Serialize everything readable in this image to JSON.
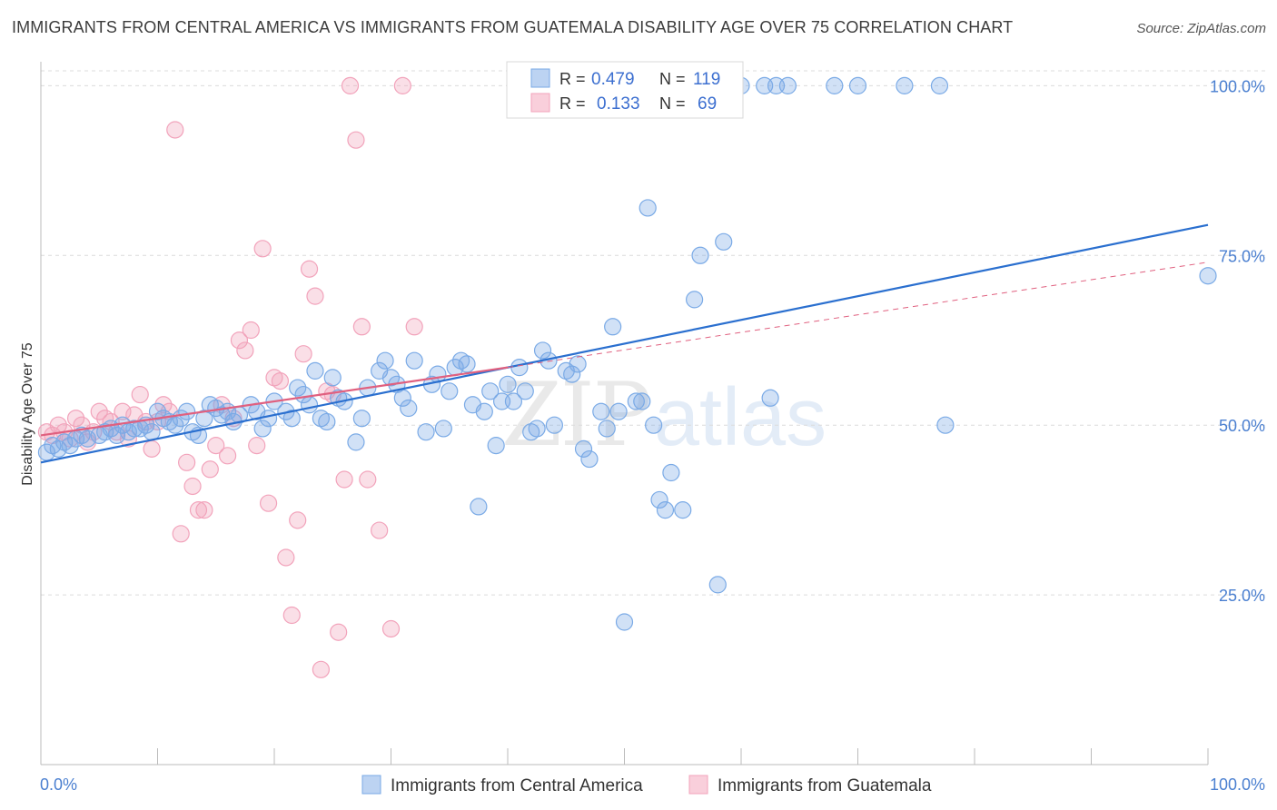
{
  "title": "IMMIGRANTS FROM CENTRAL AMERICA VS IMMIGRANTS FROM GUATEMALA DISABILITY AGE OVER 75 CORRELATION CHART",
  "source": "Source: ZipAtlas.com",
  "watermark": "ZIPatlas",
  "colors": {
    "blue": "#7aaae6",
    "blue_line": "#2a6fcf",
    "pink": "#f2a3bb",
    "pink_line": "#e0607f",
    "axis_text": "#4a7fd0"
  },
  "legend_top": [
    {
      "r_label": "R =",
      "r_value": "0.479",
      "n_label": "N =",
      "n_value": "119"
    },
    {
      "r_label": "R =",
      "r_value": "0.133",
      "n_label": "N =",
      "n_value": "69"
    }
  ],
  "chart_data": {
    "type": "scatter",
    "title": "IMMIGRANTS FROM CENTRAL AMERICA VS IMMIGRANTS FROM GUATEMALA DISABILITY AGE OVER 75 CORRELATION CHART",
    "xlabel": "",
    "ylabel": "Disability Age Over 75",
    "xlim": [
      0,
      100
    ],
    "ylim": [
      0,
      105
    ],
    "x_tick_labels": [
      "0.0%",
      "100.0%"
    ],
    "y_tick_labels": [
      "25.0%",
      "50.0%",
      "75.0%",
      "100.0%"
    ],
    "y_ticks": [
      25,
      50,
      75,
      100
    ],
    "grid": true,
    "legend_position": "top-center",
    "series": [
      {
        "name": "Immigrants from Central America",
        "color": "#7aaae6",
        "trend": {
          "x": [
            0,
            100
          ],
          "y": [
            44.5,
            79.5
          ]
        },
        "points": [
          [
            0.5,
            46
          ],
          [
            1,
            47
          ],
          [
            1.5,
            46.5
          ],
          [
            2,
            47.5
          ],
          [
            2.5,
            47
          ],
          [
            3,
            48
          ],
          [
            3.5,
            48.5
          ],
          [
            4,
            48
          ],
          [
            5,
            48.5
          ],
          [
            5.5,
            49
          ],
          [
            6,
            49.5
          ],
          [
            6.5,
            48.5
          ],
          [
            7,
            50
          ],
          [
            7.5,
            49
          ],
          [
            8,
            49.5
          ],
          [
            8.5,
            49.5
          ],
          [
            9,
            50
          ],
          [
            9.5,
            49
          ],
          [
            10,
            52
          ],
          [
            10.5,
            51
          ],
          [
            11,
            50.5
          ],
          [
            11.5,
            50
          ],
          [
            12,
            51
          ],
          [
            12.5,
            52
          ],
          [
            13,
            49
          ],
          [
            13.5,
            48.5
          ],
          [
            14,
            51
          ],
          [
            14.5,
            53
          ],
          [
            15,
            52.5
          ],
          [
            15.5,
            51.5
          ],
          [
            16,
            52
          ],
          [
            16.5,
            50.5
          ],
          [
            17,
            51.5
          ],
          [
            18,
            53
          ],
          [
            18.5,
            52
          ],
          [
            19,
            49.5
          ],
          [
            19.5,
            51
          ],
          [
            20,
            53.5
          ],
          [
            21,
            52
          ],
          [
            21.5,
            51
          ],
          [
            22,
            55.5
          ],
          [
            22.5,
            54.5
          ],
          [
            23,
            53
          ],
          [
            23.5,
            58
          ],
          [
            24,
            51
          ],
          [
            24.5,
            50.5
          ],
          [
            25,
            57
          ],
          [
            25.5,
            54
          ],
          [
            26,
            53.5
          ],
          [
            27,
            47.5
          ],
          [
            27.5,
            51
          ],
          [
            28,
            55.5
          ],
          [
            29,
            58
          ],
          [
            29.5,
            59.5
          ],
          [
            30,
            57
          ],
          [
            30.5,
            56
          ],
          [
            31,
            54
          ],
          [
            31.5,
            52.5
          ],
          [
            32,
            59.5
          ],
          [
            33,
            49
          ],
          [
            33.5,
            56
          ],
          [
            34,
            57.5
          ],
          [
            34.5,
            49.5
          ],
          [
            35,
            55
          ],
          [
            35.5,
            58.5
          ],
          [
            36,
            59.5
          ],
          [
            36.5,
            59
          ],
          [
            37,
            53
          ],
          [
            37.5,
            38
          ],
          [
            38,
            52
          ],
          [
            38.5,
            55
          ],
          [
            39,
            47
          ],
          [
            39.5,
            53.5
          ],
          [
            40,
            56
          ],
          [
            40.5,
            53.5
          ],
          [
            41,
            58.5
          ],
          [
            41.5,
            55
          ],
          [
            42,
            49
          ],
          [
            42.5,
            49.5
          ],
          [
            43,
            61
          ],
          [
            43.5,
            59.5
          ],
          [
            44,
            50
          ],
          [
            45,
            58
          ],
          [
            45.5,
            57.5
          ],
          [
            46,
            59
          ],
          [
            46.5,
            46.5
          ],
          [
            47,
            45
          ],
          [
            48,
            52
          ],
          [
            48.5,
            49.5
          ],
          [
            49,
            64.5
          ],
          [
            49.5,
            52
          ],
          [
            50,
            21
          ],
          [
            51,
            53.5
          ],
          [
            51.5,
            53.5
          ],
          [
            52,
            82
          ],
          [
            52.5,
            50
          ],
          [
            53,
            39
          ],
          [
            53.5,
            37.5
          ],
          [
            54,
            43
          ],
          [
            55,
            37.5
          ],
          [
            56,
            68.5
          ],
          [
            56.5,
            75
          ],
          [
            58,
            26.5
          ],
          [
            58.5,
            77
          ],
          [
            59,
            100
          ],
          [
            60,
            100
          ],
          [
            62,
            100
          ],
          [
            62.5,
            54
          ],
          [
            63,
            100
          ],
          [
            64,
            100
          ],
          [
            68,
            100
          ],
          [
            70,
            100
          ],
          [
            74,
            100
          ],
          [
            77,
            100
          ],
          [
            77.5,
            50
          ],
          [
            100,
            72
          ]
        ]
      },
      {
        "name": "Immigrants from Guatemala",
        "color": "#f2a3bb",
        "trend": {
          "x": [
            0,
            40,
            100
          ],
          "y": [
            48.5,
            58.5,
            74
          ]
        },
        "points": [
          [
            0.5,
            49
          ],
          [
            1,
            48.5
          ],
          [
            1.5,
            50
          ],
          [
            2,
            49
          ],
          [
            2.5,
            48
          ],
          [
            3,
            51
          ],
          [
            3.5,
            50
          ],
          [
            4,
            47.5
          ],
          [
            4.5,
            49
          ],
          [
            5,
            52
          ],
          [
            5.5,
            51
          ],
          [
            6,
            50.5
          ],
          [
            6.5,
            49
          ],
          [
            7,
            52
          ],
          [
            7.5,
            48
          ],
          [
            8,
            51.5
          ],
          [
            8.5,
            54.5
          ],
          [
            9,
            50.5
          ],
          [
            9.5,
            46.5
          ],
          [
            10,
            50.5
          ],
          [
            10.5,
            53
          ],
          [
            11,
            52
          ],
          [
            11.5,
            93.5
          ],
          [
            12,
            34
          ],
          [
            12.5,
            44.5
          ],
          [
            13,
            41
          ],
          [
            13.5,
            37.5
          ],
          [
            14,
            37.5
          ],
          [
            14.5,
            43.5
          ],
          [
            15,
            47
          ],
          [
            15.5,
            53
          ],
          [
            16,
            45.5
          ],
          [
            16.5,
            51
          ],
          [
            17,
            62.5
          ],
          [
            17.5,
            61
          ],
          [
            18,
            64
          ],
          [
            18.5,
            47
          ],
          [
            19,
            76
          ],
          [
            19.5,
            38.5
          ],
          [
            20,
            57
          ],
          [
            20.5,
            56.5
          ],
          [
            21,
            30.5
          ],
          [
            21.5,
            22
          ],
          [
            22,
            36
          ],
          [
            22.5,
            60.5
          ],
          [
            23,
            73
          ],
          [
            23.5,
            69
          ],
          [
            24,
            14
          ],
          [
            24.5,
            55
          ],
          [
            25,
            54.5
          ],
          [
            25.5,
            19.5
          ],
          [
            26,
            42
          ],
          [
            26.5,
            100
          ],
          [
            27,
            92
          ],
          [
            27.5,
            64.5
          ],
          [
            28,
            42
          ],
          [
            29,
            34.5
          ],
          [
            30,
            20
          ],
          [
            31,
            100
          ],
          [
            32,
            64.5
          ]
        ]
      }
    ]
  },
  "bottom_legend": [
    {
      "label": "Immigrants from Central America"
    },
    {
      "label": "Immigrants from Guatemala"
    }
  ]
}
